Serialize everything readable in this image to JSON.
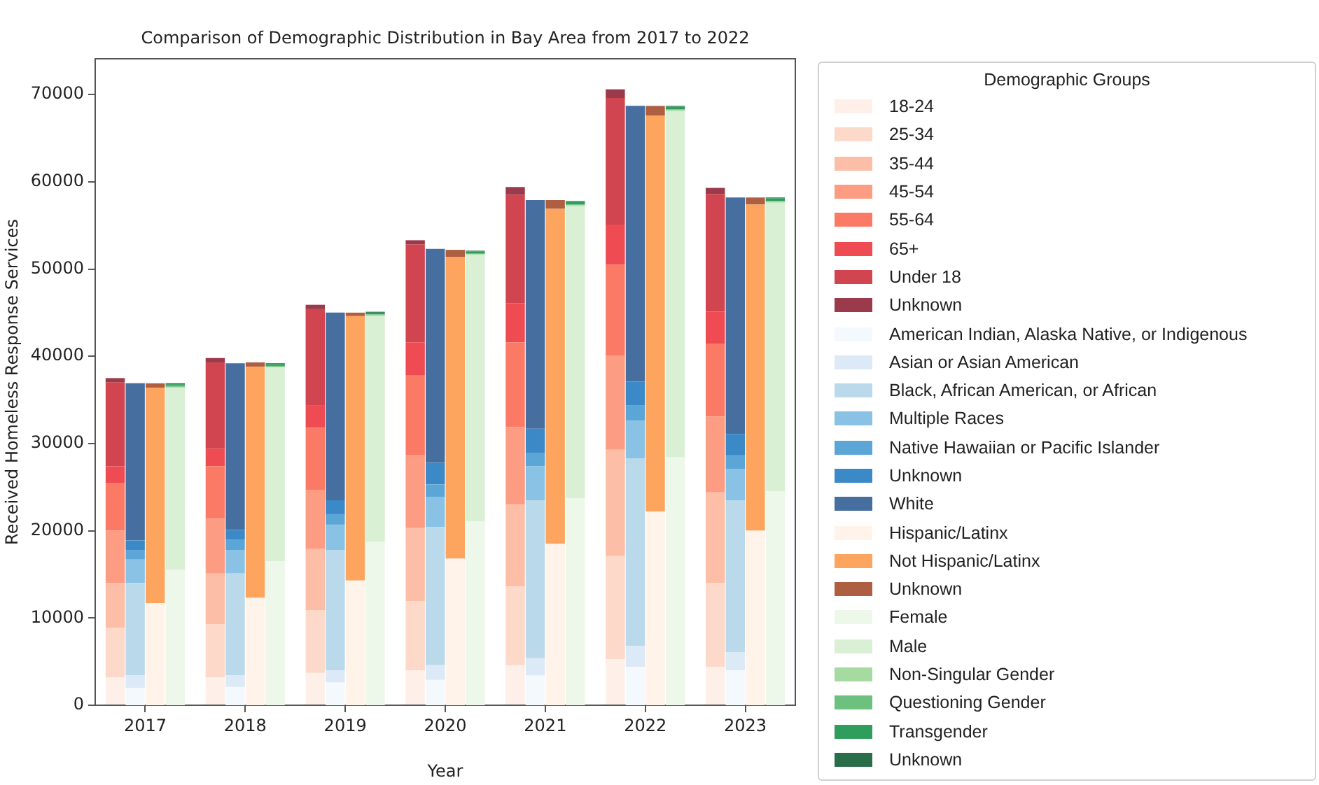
{
  "chart_data": [
    {
      "type": "bar",
      "stacked": true,
      "title": "Comparison of Demographic Distribution in Bay Area from 2017 to 2022",
      "xlabel": "Year",
      "ylabel": "Received Homeless Response Services",
      "legend_title": "Demographic Groups",
      "legend": "right",
      "grid": false,
      "categories": [
        "2017",
        "2018",
        "2019",
        "2020",
        "2021",
        "2022",
        "2023"
      ],
      "ylim": [
        0,
        74100
      ],
      "yticks": [
        0,
        10000,
        20000,
        30000,
        40000,
        50000,
        60000,
        70000
      ],
      "series": [
        {
          "name": "18-24",
          "color": "#fef0e9",
          "values": [
            3200,
            3200,
            3700,
            4000,
            4600,
            5300,
            4400
          ]
        },
        {
          "name": "25-34",
          "color": "#fdd9ca",
          "values": [
            5700,
            6100,
            7200,
            7900,
            9000,
            11800,
            9600
          ]
        },
        {
          "name": "35-44",
          "color": "#fcbea6",
          "values": [
            5100,
            5800,
            7000,
            8400,
            9400,
            12200,
            10400
          ]
        },
        {
          "name": "45-54",
          "color": "#fc9c82",
          "values": [
            6000,
            6300,
            6800,
            8400,
            8900,
            10800,
            8700
          ]
        },
        {
          "name": "55-64",
          "color": "#fb7a66",
          "values": [
            5500,
            6000,
            7100,
            9100,
            9700,
            10400,
            8300
          ]
        },
        {
          "name": "65+",
          "color": "#ee4b53",
          "values": [
            1900,
            2000,
            2600,
            3800,
            4500,
            4600,
            3700
          ]
        },
        {
          "name": "Under 18",
          "color": "#d0454f",
          "values": [
            9600,
            9900,
            11000,
            11200,
            12400,
            14500,
            13500
          ]
        },
        {
          "name": "Unknown",
          "color": "#9b3a4b",
          "values": [
            500,
            500,
            500,
            500,
            900,
            1000,
            700
          ]
        }
      ]
    },
    {
      "type": "bar",
      "stacked": true,
      "legend": "right",
      "tick_labels": false,
      "categories": [
        "2017",
        "2018",
        "2019",
        "2020",
        "2021",
        "2022",
        "2023"
      ],
      "ylim": [
        0,
        74100
      ],
      "yticks": [
        0,
        10000,
        20000,
        30000,
        40000,
        50000,
        60000,
        70000
      ],
      "series": [
        {
          "name": "American Indian, Alaska Native, or Indigenous",
          "color": "#f4f9fe",
          "values": [
            2000,
            2100,
            2600,
            2900,
            3400,
            4400,
            4000
          ]
        },
        {
          "name": "Asian or Asian American",
          "color": "#dce9f6",
          "values": [
            1400,
            1300,
            1400,
            1700,
            2000,
            2400,
            2100
          ]
        },
        {
          "name": "Black, African American, or African",
          "color": "#badaec",
          "values": [
            10600,
            11700,
            13800,
            15800,
            18100,
            21500,
            17400
          ]
        },
        {
          "name": "Multiple Races",
          "color": "#89c2e4",
          "values": [
            2700,
            2700,
            2900,
            3500,
            3900,
            4300,
            3600
          ]
        },
        {
          "name": "Native Hawaiian or Pacific Islander",
          "color": "#5ba6d6",
          "values": [
            1100,
            1200,
            1200,
            1400,
            1500,
            1800,
            1500
          ]
        },
        {
          "name": "Unknown",
          "color": "#3b89c6",
          "values": [
            1100,
            1100,
            1600,
            2500,
            2800,
            2700,
            2500
          ]
        },
        {
          "name": "White",
          "color": "#466e9e",
          "values": [
            18000,
            19100,
            21500,
            24500,
            26200,
            31600,
            27100
          ]
        }
      ]
    },
    {
      "type": "bar",
      "stacked": true,
      "legend": "right",
      "tick_labels": false,
      "categories": [
        "2017",
        "2018",
        "2019",
        "2020",
        "2021",
        "2022",
        "2023"
      ],
      "ylim": [
        0,
        74100
      ],
      "yticks": [
        0,
        10000,
        20000,
        30000,
        40000,
        50000,
        60000,
        70000
      ],
      "series": [
        {
          "name": "Hispanic/Latinx",
          "color": "#fff3ea",
          "values": [
            11700,
            12300,
            14300,
            16800,
            18500,
            22200,
            20000
          ]
        },
        {
          "name": "Not Hispanic/Latinx",
          "color": "#fda55e",
          "values": [
            24700,
            26500,
            30300,
            34600,
            38400,
            45400,
            37400
          ]
        },
        {
          "name": "Unknown",
          "color": "#ae5f42",
          "values": [
            500,
            500,
            400,
            800,
            1000,
            1100,
            800
          ]
        }
      ]
    },
    {
      "type": "bar",
      "stacked": true,
      "legend": "right",
      "tick_labels": false,
      "categories": [
        "2017",
        "2018",
        "2019",
        "2020",
        "2021",
        "2022",
        "2023"
      ],
      "ylim": [
        0,
        74100
      ],
      "yticks": [
        0,
        10000,
        20000,
        30000,
        40000,
        50000,
        60000,
        70000
      ],
      "series": [
        {
          "name": "Female",
          "color": "#edf7ea",
          "values": [
            15500,
            16500,
            18700,
            21100,
            23700,
            28400,
            24500
          ]
        },
        {
          "name": "Male",
          "color": "#d9f0d4",
          "values": [
            20900,
            22200,
            25900,
            30500,
            33500,
            39700,
            33100
          ]
        },
        {
          "name": "Non-Singular Gender",
          "color": "#a5dba1",
          "values": [
            100,
            100,
            100,
            100,
            100,
            100,
            100
          ]
        },
        {
          "name": "Questioning Gender",
          "color": "#6cc17f",
          "values": [
            100,
            100,
            100,
            100,
            100,
            100,
            100
          ]
        },
        {
          "name": "Transgender",
          "color": "#2f9e5d",
          "values": [
            200,
            200,
            200,
            200,
            300,
            300,
            300
          ]
        },
        {
          "name": "Unknown",
          "color": "#2a6e49",
          "values": [
            100,
            100,
            100,
            100,
            100,
            100,
            100
          ]
        }
      ]
    }
  ]
}
